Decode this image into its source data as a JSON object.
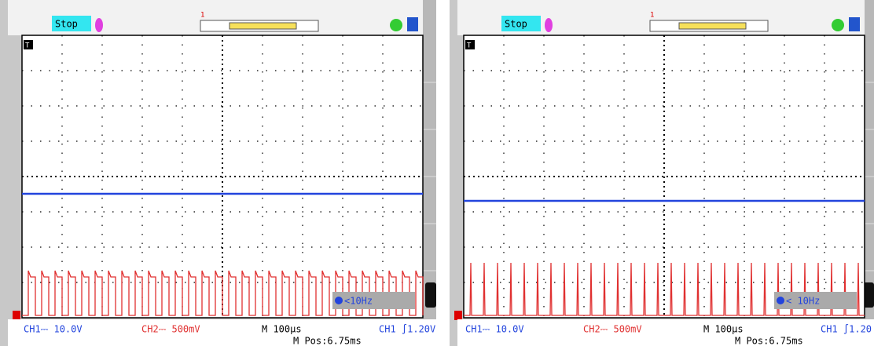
{
  "panels": [
    {
      "status": "Stop",
      "trigger_marker": "1",
      "ground_marker": "T",
      "frequency": "<10Hz",
      "ch1_scale": "CH1⎓ 10.0V",
      "ch2_scale": "CH2⎓ 500mV",
      "timebase": "M 100μs",
      "trigger": "CH1 ∫1.20V",
      "position": "M Pos:6.75ms"
    },
    {
      "status": "Stop",
      "trigger_marker": "1",
      "ground_marker": "T",
      "frequency": "< 10Hz",
      "ch1_scale": "CH1⎓ 10.0V",
      "ch2_scale": "CH2⎓ 500mV",
      "timebase": "M 100μs",
      "trigger": "CH1 ∫1.20",
      "position": "M Pos:6.75ms"
    }
  ]
}
